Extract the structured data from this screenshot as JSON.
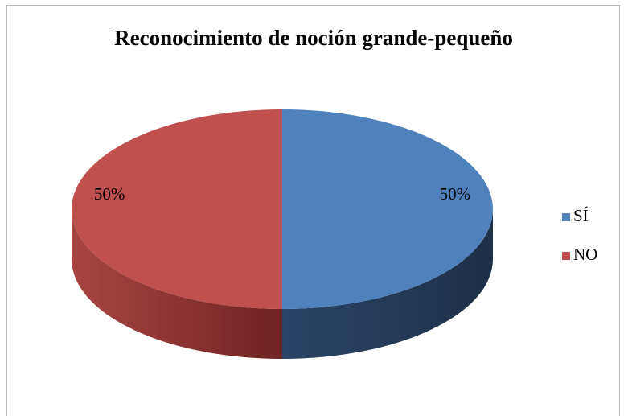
{
  "chart_data": {
    "type": "pie",
    "title": "Reconocimiento de noción grande-pequeño",
    "categories": [
      "SÍ",
      "NO"
    ],
    "values": [
      50,
      50
    ],
    "value_labels": [
      "50%",
      "50%"
    ],
    "colors": [
      "#4f81bd",
      "#c0504d"
    ],
    "legend": "right",
    "three_d": true
  }
}
